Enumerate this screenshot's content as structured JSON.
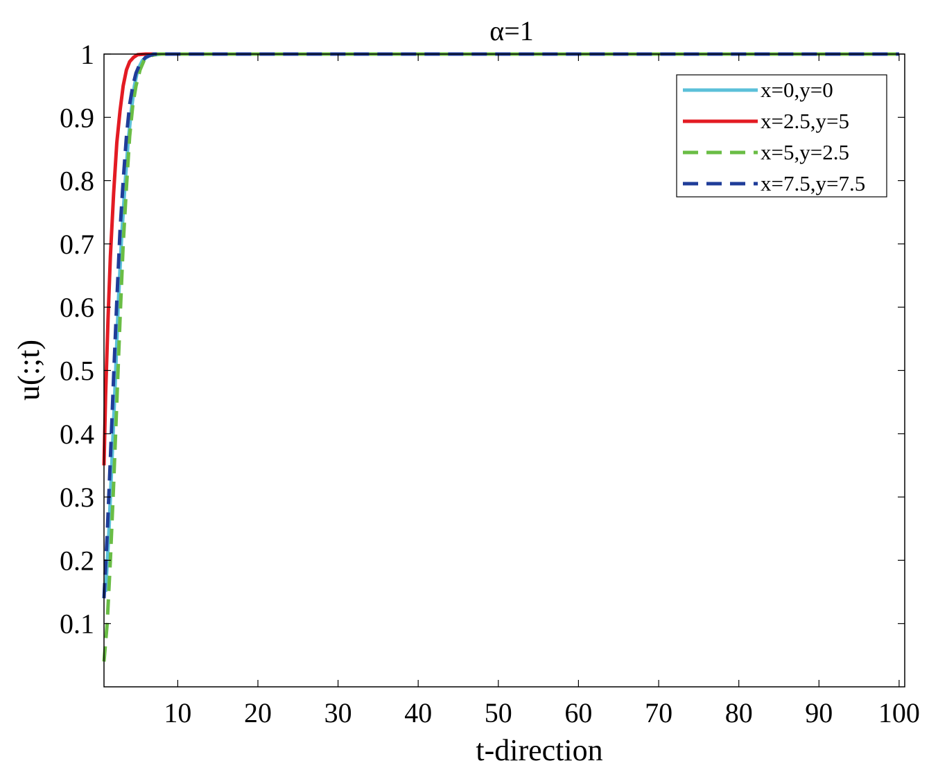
{
  "chart_data": {
    "type": "line",
    "title": "α=1",
    "xlabel": "t-direction",
    "ylabel": "u(:;t)",
    "xlim": [
      0.8,
      100.7
    ],
    "ylim": [
      0,
      1
    ],
    "xticks": [
      10,
      20,
      30,
      40,
      50,
      60,
      70,
      80,
      90,
      100
    ],
    "yticks": [
      0.1,
      0.2,
      0.3,
      0.4,
      0.5,
      0.6,
      0.7,
      0.8,
      0.9,
      1
    ],
    "grid": false,
    "legend_position": "top-right",
    "series": [
      {
        "name": "x=0,y=0",
        "color": "#5bc0d9",
        "style": "solid",
        "x": [
          1.0,
          1.4,
          1.8,
          2.2,
          2.6,
          3.0,
          3.4,
          3.8,
          4.2,
          4.6,
          5.0,
          5.6,
          6.5,
          8.0,
          12,
          20,
          40,
          60,
          80,
          100
        ],
        "y": [
          0.15,
          0.24,
          0.36,
          0.48,
          0.61,
          0.71,
          0.79,
          0.86,
          0.91,
          0.95,
          0.975,
          0.99,
          0.998,
          1.0,
          1.0,
          1.0,
          1.0,
          1.0,
          1.0,
          1.0
        ]
      },
      {
        "name": "x=2.5,y=5",
        "color": "#e31b23",
        "style": "solid",
        "x": [
          0.8,
          1.0,
          1.3,
          1.6,
          2.0,
          2.4,
          2.8,
          3.2,
          3.6,
          4.0,
          4.5,
          5.0,
          6.0,
          8.0,
          12,
          20,
          40,
          60,
          80,
          100
        ],
        "y": [
          0.35,
          0.46,
          0.58,
          0.68,
          0.78,
          0.86,
          0.91,
          0.95,
          0.975,
          0.988,
          0.995,
          0.999,
          1.0,
          1.0,
          1.0,
          1.0,
          1.0,
          1.0,
          1.0,
          1.0
        ]
      },
      {
        "name": "x=5,y=2.5",
        "color": "#6abd45",
        "style": "dashed",
        "x": [
          0.8,
          1.2,
          1.6,
          2.0,
          2.4,
          2.8,
          3.2,
          3.6,
          4.0,
          4.4,
          4.8,
          5.3,
          5.8,
          6.5,
          7.5,
          10,
          20,
          40,
          60,
          80,
          100
        ],
        "y": [
          0.04,
          0.1,
          0.2,
          0.32,
          0.45,
          0.58,
          0.7,
          0.79,
          0.87,
          0.92,
          0.95,
          0.975,
          0.99,
          0.997,
          1.0,
          1.0,
          1.0,
          1.0,
          1.0,
          1.0,
          1.0
        ]
      },
      {
        "name": "x=7.5,y=7.5",
        "color": "#1f3d99",
        "style": "dashed",
        "x": [
          0.8,
          1.2,
          1.6,
          2.0,
          2.4,
          2.8,
          3.2,
          3.6,
          4.0,
          4.4,
          4.8,
          5.3,
          6.0,
          7.0,
          9.0,
          12,
          20,
          40,
          60,
          80,
          100
        ],
        "y": [
          0.14,
          0.24,
          0.36,
          0.49,
          0.61,
          0.72,
          0.8,
          0.87,
          0.92,
          0.95,
          0.97,
          0.985,
          0.995,
          1.0,
          1.0,
          1.0,
          1.0,
          1.0,
          1.0,
          1.0,
          1.0
        ]
      }
    ]
  }
}
